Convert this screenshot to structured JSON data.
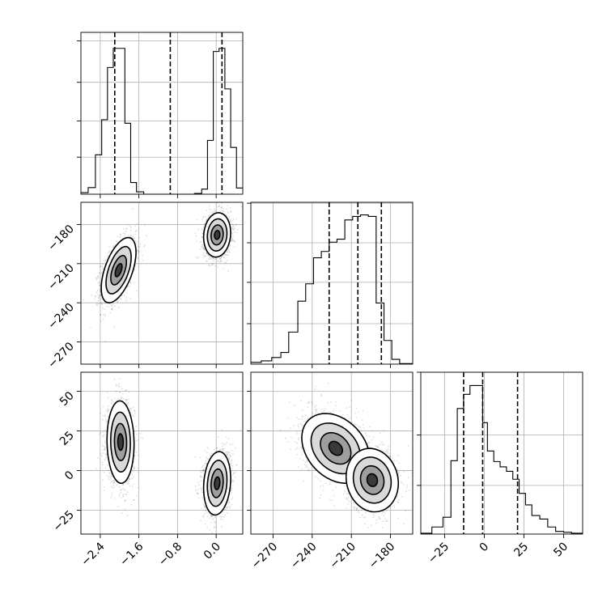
{
  "chart_data": {
    "type": "corner",
    "parameters": [
      {
        "range": [
          -2.8,
          0.55
        ],
        "ticks": [
          -2.4,
          -1.6,
          -0.8,
          0.0
        ],
        "tick_labels": [
          "−2.4",
          "−1.6",
          "−0.8",
          "0.0"
        ]
      },
      {
        "range": [
          -287,
          -163
        ],
        "ticks": [
          -270,
          -240,
          -210,
          -180
        ],
        "tick_labels": [
          "−270",
          "−240",
          "−210",
          "−180"
        ]
      },
      {
        "range": [
          -40,
          62
        ],
        "ticks": [
          -25,
          0,
          25,
          50
        ],
        "tick_labels": [
          "−25",
          "0",
          "25",
          "50"
        ]
      }
    ],
    "histograms": [
      {
        "param": 0,
        "bins": [
          -2.8,
          -2.65,
          -2.5,
          -2.37,
          -2.25,
          -2.13,
          -2.01,
          -1.89,
          -1.77,
          -1.65,
          -1.5,
          -1.3,
          -1.0,
          -0.7,
          -0.45,
          -0.3,
          -0.18,
          -0.06,
          0.06,
          0.18,
          0.3,
          0.42,
          0.55
        ],
        "counts": [
          0.4,
          1.7,
          10.1,
          19.1,
          32.5,
          37.4,
          37.4,
          18.2,
          3.0,
          0.6,
          0,
          0,
          0,
          0,
          0.2,
          1.3,
          13.8,
          36.6,
          37.4,
          27.0,
          12.0,
          1.6
        ],
        "ylim": [
          0,
          41.5
        ],
        "gridlines": [
          9.5,
          18.8,
          28.7,
          39.3
        ],
        "quantiles": [
          -2.1,
          -0.95,
          0.12
        ]
      },
      {
        "param": 1,
        "bins": [
          -287,
          -279,
          -271,
          -264,
          -258,
          -251,
          -245,
          -239,
          -233,
          -227,
          -221,
          -215,
          -209,
          -203,
          -197,
          -191,
          -185,
          -179,
          -173,
          -167,
          -163
        ],
        "counts": [
          0.6,
          1.1,
          2.2,
          3.9,
          10.7,
          21.0,
          26.8,
          35.5,
          37.6,
          40.7,
          41.7,
          48.1,
          49.3,
          49.8,
          49.3,
          20.4,
          7.9,
          1.6,
          0.2,
          0.2
        ],
        "ylim": [
          0,
          54
        ],
        "gridlines": [
          13.5,
          27.3,
          40.5,
          53.7
        ],
        "quantiles": [
          -227,
          -205,
          -187
        ]
      },
      {
        "param": 2,
        "bins": [
          -40,
          -33,
          -26,
          -21,
          -17,
          -13,
          -9,
          -5,
          -1,
          2,
          6,
          10,
          14,
          18,
          22,
          26,
          30,
          35,
          40,
          45,
          50,
          55,
          62
        ],
        "counts": [
          0.1,
          0.8,
          1.9,
          8.3,
          14.2,
          15.8,
          16.8,
          16.8,
          12.6,
          9.4,
          8.2,
          7.6,
          7.1,
          6.2,
          4.6,
          3.3,
          2.1,
          1.7,
          0.8,
          0.3,
          0.2,
          0.1
        ],
        "ylim": [
          0,
          18.3
        ],
        "gridlines": [
          5.5,
          11.2,
          18.3
        ],
        "quantiles": [
          -13,
          -1,
          21
        ]
      }
    ],
    "panels_2d": [
      {
        "x_param": 0,
        "y_param": 1,
        "blobs": [
          {
            "cx": -2.02,
            "cy": -215,
            "sx": 0.18,
            "sy": 12.5,
            "rho": 0.55,
            "n": 1500
          },
          {
            "cx": 0.02,
            "cy": -188,
            "sx": 0.14,
            "sy": 8.5,
            "rho": 0.1,
            "n": 1500
          }
        ]
      },
      {
        "x_param": 0,
        "y_param": 2,
        "blobs": [
          {
            "cx": -1.98,
            "cy": 18,
            "sx": 0.14,
            "sy": 13,
            "rho": -0.05,
            "n": 1500
          },
          {
            "cx": 0.02,
            "cy": -8,
            "sx": 0.14,
            "sy": 10,
            "rho": 0.15,
            "n": 1500
          }
        ]
      },
      {
        "x_param": 1,
        "y_param": 2,
        "blobs": [
          {
            "cx": -222,
            "cy": 14,
            "sx": 13,
            "sy": 11,
            "rho": -0.3,
            "n": 1400
          },
          {
            "cx": -194,
            "cy": -6,
            "sx": 10,
            "sy": 10,
            "rho": -0.1,
            "n": 1400
          }
        ]
      }
    ]
  }
}
